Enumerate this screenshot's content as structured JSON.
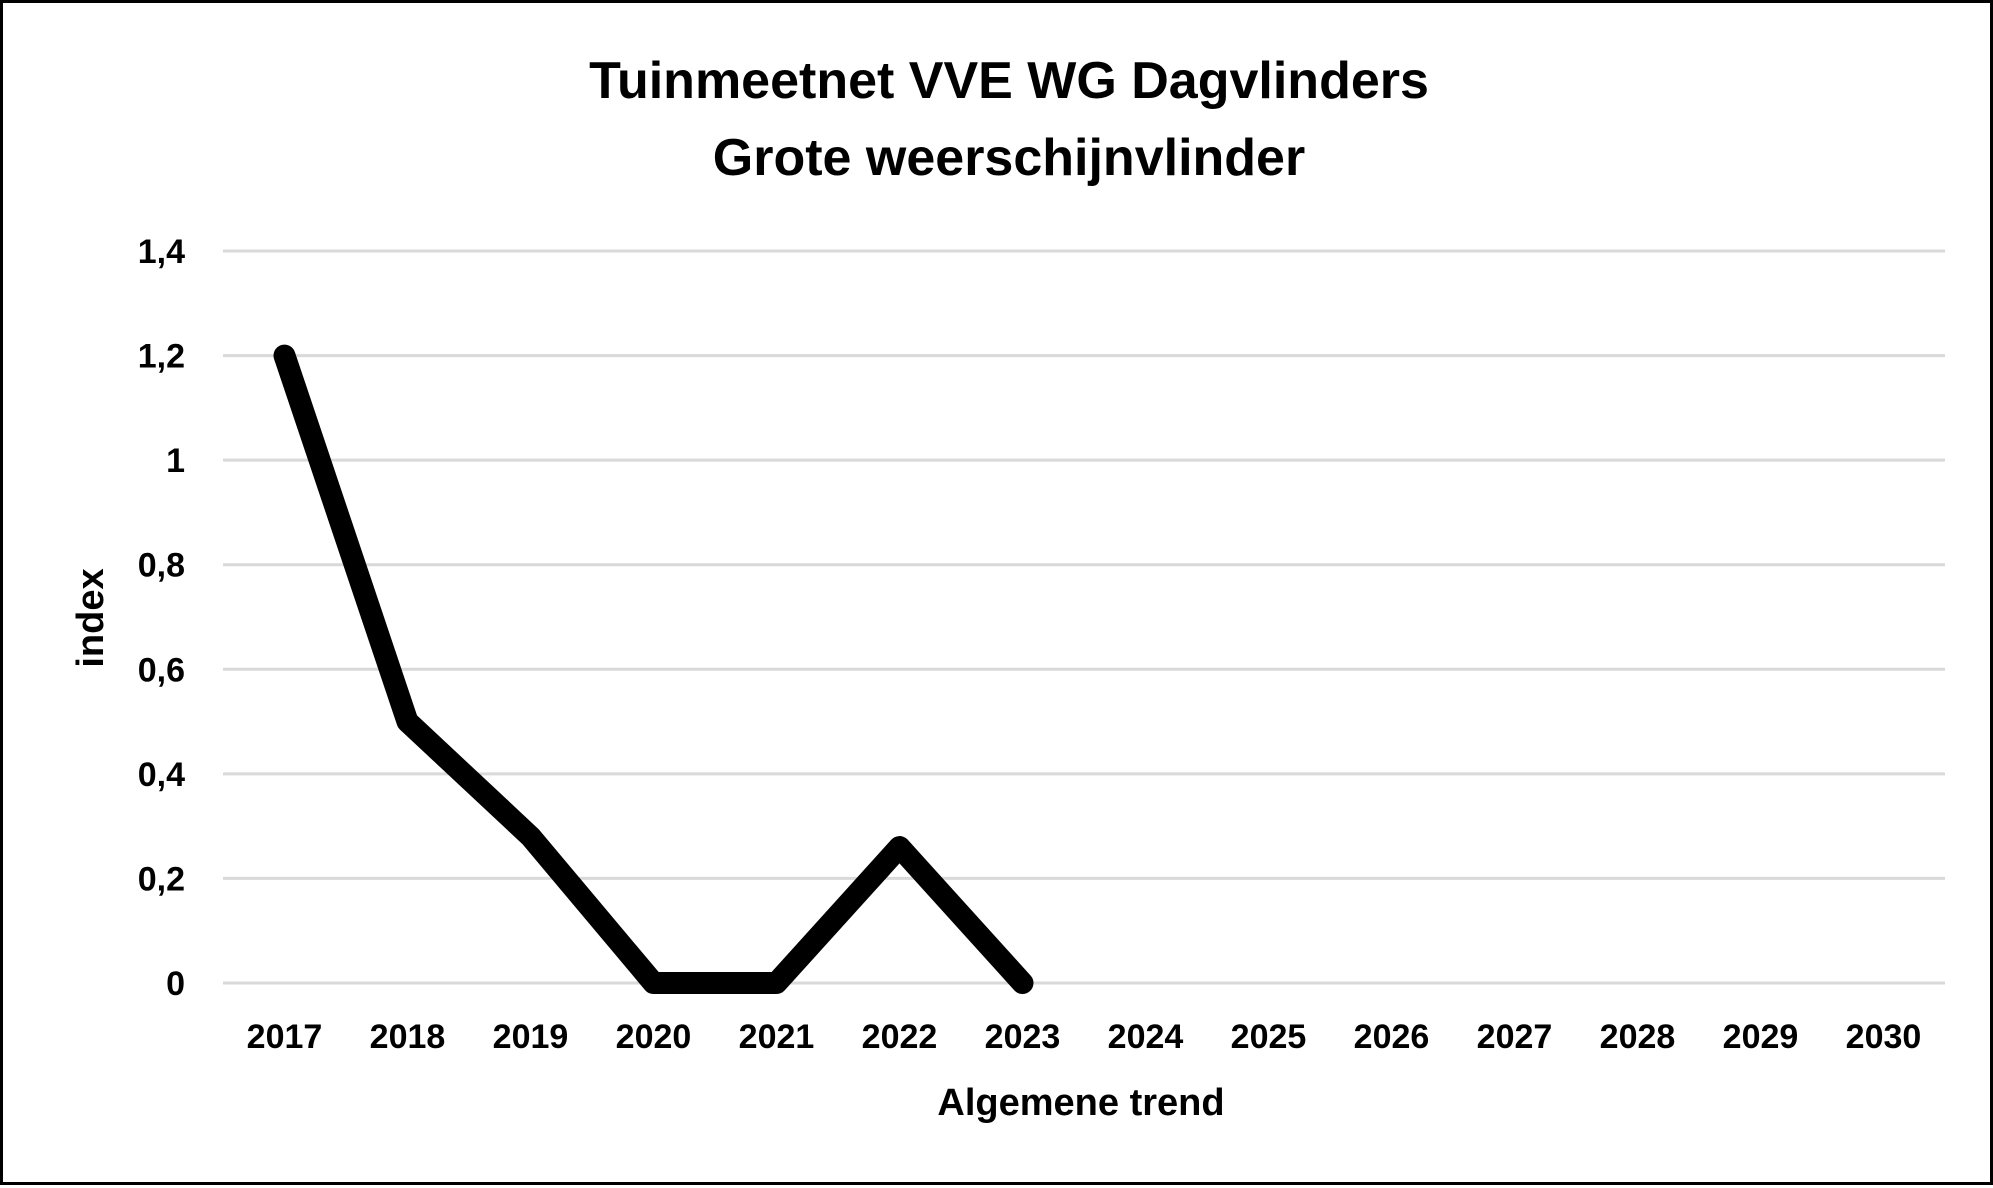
{
  "chart_data": {
    "type": "line",
    "title": "Tuinmeetnet VVE WG Dagvlinders",
    "subtitle": "Grote weerschijnvlinder",
    "xlabel": "Algemene trend",
    "ylabel": "index",
    "categories": [
      "2017",
      "2018",
      "2019",
      "2020",
      "2021",
      "2022",
      "2023",
      "2024",
      "2025",
      "2026",
      "2027",
      "2028",
      "2029",
      "2030"
    ],
    "y_ticks": [
      "0",
      "0,2",
      "0,4",
      "0,6",
      "0,8",
      "1",
      "1,2",
      "1,4"
    ],
    "y_tick_values": [
      0,
      0.2,
      0.4,
      0.6,
      0.8,
      1.0,
      1.2,
      1.4
    ],
    "ylim": [
      0,
      1.4
    ],
    "grid": true,
    "legend": "none",
    "series": [
      {
        "values": [
          1.2,
          0.5,
          0.28,
          0,
          0,
          0.26,
          0,
          null,
          null,
          null,
          null,
          null,
          null,
          null
        ],
        "color": "#000000"
      }
    ],
    "colors": {
      "line": "#000000",
      "grid": "#d9d9d9",
      "border": "#000000",
      "background": "#ffffff"
    }
  }
}
